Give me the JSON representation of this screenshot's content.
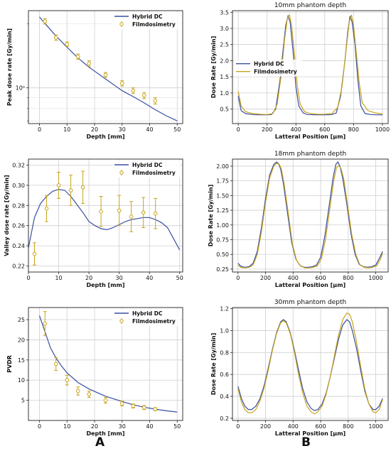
{
  "colors": {
    "hybrid": "#3a4fa0",
    "film": "#c8a41a",
    "grid": "#cfcfcf",
    "axis": "#222222"
  },
  "panel_labels": {
    "a": "A",
    "b": "B"
  },
  "chart_data": [
    {
      "id": "peak",
      "type": "line",
      "ylabel": "Peak dose rate [Gy/min]",
      "xlabel": "Depth [mm]",
      "yscale": "log",
      "xlim": [
        -4,
        52
      ],
      "ylim": [
        0.68,
        2.3
      ],
      "xticks": [
        0,
        10,
        20,
        30,
        40,
        50
      ],
      "yticks": [
        {
          "v": 1.0,
          "label": "10⁰"
        }
      ],
      "yminor": [
        0.7,
        0.8,
        0.9,
        2.0
      ],
      "legend": "top-right",
      "series": [
        {
          "name": "Hybrid DC",
          "kind": "line",
          "x": [
            0,
            2,
            6,
            10,
            14,
            18,
            24,
            30,
            34,
            38,
            42,
            46,
            50
          ],
          "y": [
            2.15,
            2.0,
            1.75,
            1.55,
            1.38,
            1.25,
            1.1,
            0.97,
            0.91,
            0.85,
            0.79,
            0.74,
            0.7
          ]
        },
        {
          "name": "Filmdosimetry",
          "kind": "errorbar",
          "x": [
            2,
            6,
            10,
            14,
            18,
            24,
            30,
            34,
            38,
            42
          ],
          "y": [
            2.05,
            1.72,
            1.6,
            1.4,
            1.3,
            1.15,
            1.05,
            0.97,
            0.92,
            0.87
          ],
          "err": [
            0.06,
            0.05,
            0.04,
            0.04,
            0.04,
            0.03,
            0.03,
            0.03,
            0.03,
            0.03
          ]
        }
      ]
    },
    {
      "id": "valley",
      "type": "line",
      "ylabel": "Valley dose rate [Gy/min]",
      "xlabel": "Depth [mm]",
      "yscale": "linear",
      "xlim": [
        0,
        51
      ],
      "ylim": [
        0.214,
        0.326
      ],
      "xticks": [
        0,
        10,
        20,
        30,
        40,
        50
      ],
      "yticks": [
        {
          "v": 0.22,
          "label": "0.22"
        },
        {
          "v": 0.24,
          "label": "0.24"
        },
        {
          "v": 0.26,
          "label": "0.26"
        },
        {
          "v": 0.28,
          "label": "0.28"
        },
        {
          "v": 0.3,
          "label": "0.30"
        },
        {
          "v": 0.32,
          "label": "0.32"
        }
      ],
      "legend": "top-right",
      "series": [
        {
          "name": "Hybrid DC",
          "kind": "line",
          "x": [
            0,
            2,
            4,
            6,
            8,
            10,
            12,
            14,
            16,
            18,
            20,
            22,
            24,
            26,
            28,
            30,
            32,
            34,
            36,
            38,
            40,
            42,
            44,
            46,
            48,
            50
          ],
          "y": [
            0.238,
            0.268,
            0.282,
            0.289,
            0.294,
            0.296,
            0.295,
            0.289,
            0.281,
            0.273,
            0.264,
            0.26,
            0.257,
            0.256,
            0.258,
            0.261,
            0.264,
            0.266,
            0.267,
            0.268,
            0.268,
            0.266,
            0.263,
            0.258,
            0.247,
            0.236
          ]
        },
        {
          "name": "Filmdosimetry",
          "kind": "errorbar",
          "x": [
            2,
            6,
            10,
            14,
            18,
            24,
            30,
            34,
            38,
            42
          ],
          "y": [
            0.232,
            0.277,
            0.3,
            0.295,
            0.298,
            0.274,
            0.275,
            0.269,
            0.273,
            0.272
          ],
          "err": [
            0.011,
            0.013,
            0.013,
            0.015,
            0.016,
            0.015,
            0.015,
            0.015,
            0.015,
            0.015
          ]
        }
      ]
    },
    {
      "id": "pvdr",
      "type": "line",
      "ylabel": "PVDR",
      "xlabel": "Depth [mm]",
      "yscale": "linear",
      "xlim": [
        -4,
        52
      ],
      "ylim": [
        0,
        28
      ],
      "xticks": [
        0,
        10,
        20,
        30,
        40,
        50
      ],
      "yticks": [
        {
          "v": 5,
          "label": "5"
        },
        {
          "v": 10,
          "label": "10"
        },
        {
          "v": 15,
          "label": "15"
        },
        {
          "v": 20,
          "label": "20"
        },
        {
          "v": 25,
          "label": "25"
        }
      ],
      "legend": "top-right",
      "series": [
        {
          "name": "Hybrid DC",
          "kind": "line",
          "x": [
            0,
            2,
            4,
            6,
            8,
            10,
            14,
            18,
            24,
            30,
            34,
            38,
            42,
            46,
            50
          ],
          "y": [
            26.0,
            22.0,
            18.0,
            15.5,
            13.5,
            11.8,
            9.4,
            7.8,
            6.0,
            4.7,
            3.9,
            3.3,
            2.8,
            2.4,
            2.1
          ]
        },
        {
          "name": "Filmdosimetry",
          "kind": "errorbar",
          "x": [
            2,
            6,
            10,
            14,
            18,
            24,
            30,
            34,
            38,
            42
          ],
          "y": [
            24.0,
            14.0,
            10.0,
            7.3,
            6.5,
            5.0,
            4.2,
            3.6,
            3.2,
            2.8
          ],
          "err": [
            3.0,
            1.6,
            1.2,
            1.0,
            0.8,
            0.7,
            0.6,
            0.5,
            0.5,
            0.4
          ]
        }
      ]
    },
    {
      "id": "p10",
      "type": "line",
      "title": "10mm phantom depth",
      "ylabel": "Dose Rate [Gy/min]",
      "xlabel": "Latteral Position [µm]",
      "yscale": "linear",
      "xlim": [
        -40,
        1040
      ],
      "ylim": [
        0.05,
        3.55
      ],
      "xticks": [
        0,
        200,
        400,
        600,
        800,
        1000
      ],
      "yticks": [
        {
          "v": 0.5,
          "label": "0.5"
        },
        {
          "v": 1.0,
          "label": "1.0"
        },
        {
          "v": 1.5,
          "label": "1.5"
        },
        {
          "v": 2.0,
          "label": "2.0"
        },
        {
          "v": 2.5,
          "label": "2.5"
        },
        {
          "v": 3.0,
          "label": "3.0"
        },
        {
          "v": 3.5,
          "label": "3.5"
        }
      ],
      "legend": "center-left",
      "series": [
        {
          "name": "Hybrid DC",
          "kind": "line",
          "x": [
            0,
            20,
            50,
            100,
            150,
            200,
            230,
            260,
            290,
            310,
            330,
            345,
            360,
            380,
            400,
            420,
            450,
            480,
            550,
            600,
            650,
            680,
            710,
            740,
            760,
            775,
            790,
            810,
            830,
            850,
            880,
            920,
            960,
            1000
          ],
          "y": [
            0.9,
            0.45,
            0.36,
            0.33,
            0.32,
            0.32,
            0.33,
            0.5,
            1.4,
            2.3,
            3.1,
            3.38,
            3.2,
            2.3,
            1.2,
            0.6,
            0.38,
            0.33,
            0.32,
            0.32,
            0.33,
            0.38,
            0.9,
            2.0,
            2.9,
            3.38,
            3.2,
            2.5,
            1.4,
            0.6,
            0.36,
            0.33,
            0.32,
            0.32
          ]
        },
        {
          "name": "Filmdosimetry",
          "kind": "line",
          "x": [
            0,
            20,
            50,
            100,
            150,
            200,
            240,
            270,
            300,
            320,
            340,
            355,
            370,
            390,
            410,
            430,
            460,
            500,
            550,
            600,
            650,
            690,
            720,
            750,
            770,
            785,
            800,
            820,
            840,
            860,
            900,
            950,
            1000
          ],
          "y": [
            1.05,
            0.6,
            0.42,
            0.36,
            0.34,
            0.33,
            0.36,
            0.65,
            1.6,
            2.6,
            3.3,
            3.42,
            3.1,
            2.2,
            1.2,
            0.65,
            0.42,
            0.36,
            0.34,
            0.34,
            0.36,
            0.55,
            1.2,
            2.4,
            3.2,
            3.42,
            3.1,
            2.2,
            1.3,
            0.7,
            0.45,
            0.38,
            0.35
          ]
        }
      ]
    },
    {
      "id": "p18",
      "type": "line",
      "title": "18mm phantom depth",
      "ylabel": "Dose Rate [Gy/min]",
      "xlabel": "Latteral Position [µm]",
      "yscale": "linear",
      "xlim": [
        -40,
        1090
      ],
      "ylim": [
        0.2,
        2.12
      ],
      "xticks": [
        0,
        200,
        400,
        600,
        800,
        1000
      ],
      "yticks": [
        {
          "v": 0.25,
          "label": "0.25"
        },
        {
          "v": 0.5,
          "label": "0.50"
        },
        {
          "v": 0.75,
          "label": "0.75"
        },
        {
          "v": 1.0,
          "label": "1.00"
        },
        {
          "v": 1.25,
          "label": "1.25"
        },
        {
          "v": 1.5,
          "label": "1.50"
        },
        {
          "v": 1.75,
          "label": "1.75"
        },
        {
          "v": 2.0,
          "label": "2.00"
        }
      ],
      "series": [
        {
          "name": "Hybrid DC",
          "kind": "line",
          "x": [
            0,
            20,
            50,
            80,
            110,
            140,
            170,
            200,
            230,
            260,
            280,
            295,
            310,
            330,
            360,
            390,
            420,
            450,
            480,
            510,
            540,
            570,
            600,
            630,
            660,
            690,
            710,
            725,
            740,
            760,
            790,
            820,
            850,
            880,
            910,
            940,
            970,
            1000,
            1030,
            1050
          ],
          "y": [
            0.35,
            0.3,
            0.28,
            0.29,
            0.35,
            0.55,
            0.95,
            1.45,
            1.85,
            2.03,
            2.07,
            2.04,
            1.95,
            1.7,
            1.2,
            0.7,
            0.42,
            0.31,
            0.28,
            0.28,
            0.29,
            0.32,
            0.45,
            0.8,
            1.3,
            1.8,
            2.03,
            2.07,
            2.0,
            1.8,
            1.35,
            0.85,
            0.5,
            0.33,
            0.29,
            0.28,
            0.29,
            0.32,
            0.45,
            0.55
          ]
        },
        {
          "name": "Filmdosimetry",
          "kind": "line",
          "x": [
            0,
            20,
            50,
            80,
            110,
            140,
            170,
            200,
            230,
            260,
            280,
            300,
            315,
            335,
            365,
            395,
            425,
            455,
            485,
            515,
            545,
            575,
            605,
            635,
            665,
            695,
            715,
            732,
            748,
            768,
            795,
            825,
            855,
            885,
            915,
            945,
            975,
            1005,
            1035,
            1050
          ],
          "y": [
            0.32,
            0.28,
            0.27,
            0.28,
            0.32,
            0.5,
            0.88,
            1.38,
            1.8,
            2.0,
            2.05,
            2.03,
            1.95,
            1.7,
            1.2,
            0.68,
            0.4,
            0.3,
            0.27,
            0.27,
            0.28,
            0.3,
            0.42,
            0.75,
            1.25,
            1.75,
            1.97,
            2.01,
            1.96,
            1.78,
            1.35,
            0.85,
            0.5,
            0.32,
            0.28,
            0.27,
            0.28,
            0.3,
            0.42,
            0.52
          ]
        }
      ]
    },
    {
      "id": "p30",
      "type": "line",
      "title": "30mm phantom depth",
      "ylabel": "Dose Rate [Gy/min]",
      "xlabel": "Latteral Position [µm]",
      "yscale": "linear",
      "xlim": [
        -40,
        1090
      ],
      "ylim": [
        0.18,
        1.21
      ],
      "xticks": [
        0,
        200,
        400,
        600,
        800,
        1000
      ],
      "yticks": [
        {
          "v": 0.2,
          "label": "0.2"
        },
        {
          "v": 0.4,
          "label": "0.4"
        },
        {
          "v": 0.6,
          "label": "0.6"
        },
        {
          "v": 0.8,
          "label": "0.8"
        },
        {
          "v": 1.0,
          "label": "1.0"
        },
        {
          "v": 1.2,
          "label": "1.2"
        }
      ],
      "series": [
        {
          "name": "Hybrid DC",
          "kind": "line",
          "x": [
            0,
            25,
            50,
            75,
            100,
            130,
            160,
            190,
            220,
            250,
            280,
            310,
            330,
            350,
            380,
            410,
            440,
            470,
            500,
            530,
            555,
            580,
            610,
            640,
            670,
            700,
            730,
            760,
            790,
            810,
            830,
            860,
            890,
            920,
            950,
            980,
            1000,
            1025,
            1050
          ],
          "y": [
            0.49,
            0.38,
            0.31,
            0.28,
            0.28,
            0.31,
            0.38,
            0.5,
            0.66,
            0.83,
            0.98,
            1.08,
            1.1,
            1.08,
            0.98,
            0.82,
            0.64,
            0.47,
            0.35,
            0.29,
            0.27,
            0.28,
            0.33,
            0.43,
            0.58,
            0.75,
            0.92,
            1.05,
            1.1,
            1.08,
            1.0,
            0.84,
            0.64,
            0.45,
            0.33,
            0.28,
            0.28,
            0.31,
            0.38
          ]
        },
        {
          "name": "Filmdosimetry",
          "kind": "line",
          "x": [
            0,
            25,
            50,
            75,
            100,
            130,
            160,
            190,
            220,
            250,
            280,
            310,
            330,
            350,
            380,
            410,
            440,
            470,
            500,
            530,
            555,
            580,
            610,
            640,
            670,
            700,
            730,
            760,
            790,
            810,
            830,
            860,
            890,
            920,
            950,
            980,
            1000,
            1025,
            1050
          ],
          "y": [
            0.47,
            0.35,
            0.28,
            0.25,
            0.25,
            0.28,
            0.36,
            0.48,
            0.64,
            0.82,
            0.97,
            1.07,
            1.09,
            1.07,
            0.97,
            0.8,
            0.6,
            0.43,
            0.31,
            0.26,
            0.24,
            0.26,
            0.31,
            0.42,
            0.58,
            0.77,
            0.96,
            1.1,
            1.16,
            1.15,
            1.08,
            0.9,
            0.68,
            0.47,
            0.33,
            0.26,
            0.25,
            0.28,
            0.37
          ]
        }
      ]
    }
  ]
}
